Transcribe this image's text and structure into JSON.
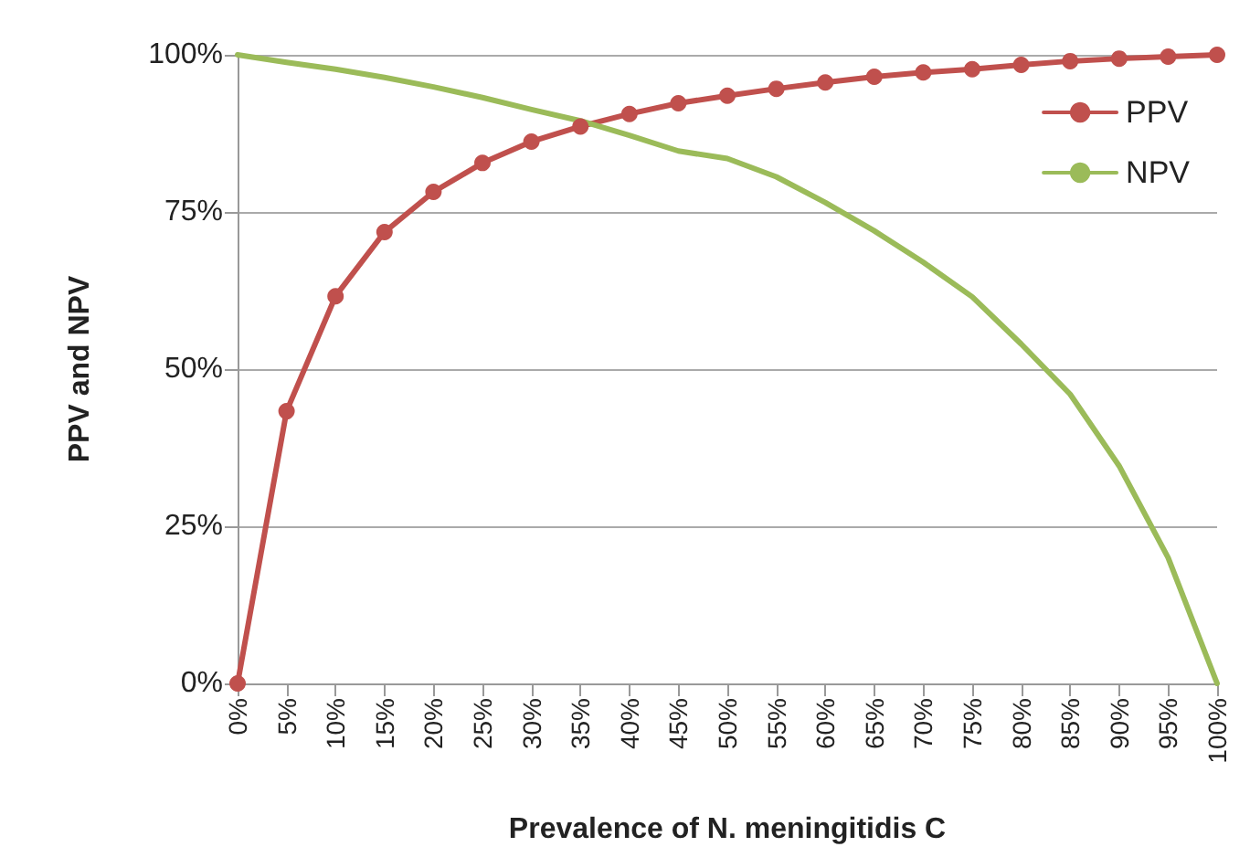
{
  "chart_data": {
    "type": "line",
    "xlabel": "Prevalence of N. meningitidis C",
    "ylabel": "PPV and NPV",
    "categories": [
      "0%",
      "5%",
      "10%",
      "15%",
      "20%",
      "25%",
      "30%",
      "35%",
      "40%",
      "45%",
      "50%",
      "55%",
      "60%",
      "65%",
      "70%",
      "75%",
      "80%",
      "85%",
      "90%",
      "95%",
      "100%"
    ],
    "series": [
      {
        "name": "PPV",
        "color": "#c0504d",
        "marker": "circle",
        "values": [
          0,
          43.3,
          61.6,
          71.8,
          78.2,
          82.8,
          86.2,
          88.6,
          90.6,
          92.3,
          93.5,
          94.6,
          95.6,
          96.5,
          97.2,
          97.7,
          98.4,
          99.0,
          99.4,
          99.7,
          100
        ]
      },
      {
        "name": "NPV",
        "color": "#9bbb59",
        "marker": "none",
        "values": [
          100,
          98.8,
          97.7,
          96.4,
          94.9,
          93.2,
          91.3,
          89.5,
          87.2,
          84.7,
          83.5,
          80.6,
          76.5,
          72,
          67,
          61.5,
          54,
          46,
          34.6,
          20,
          0
        ]
      }
    ],
    "ylim": [
      0,
      100
    ],
    "yticks": [
      {
        "value": 0,
        "label": "0%"
      },
      {
        "value": 25,
        "label": "25%"
      },
      {
        "value": 50,
        "label": "50%"
      },
      {
        "value": 75,
        "label": "75%"
      },
      {
        "value": 100,
        "label": "100%"
      }
    ],
    "grid": "y",
    "legend": "top right",
    "line_style": "solid"
  }
}
